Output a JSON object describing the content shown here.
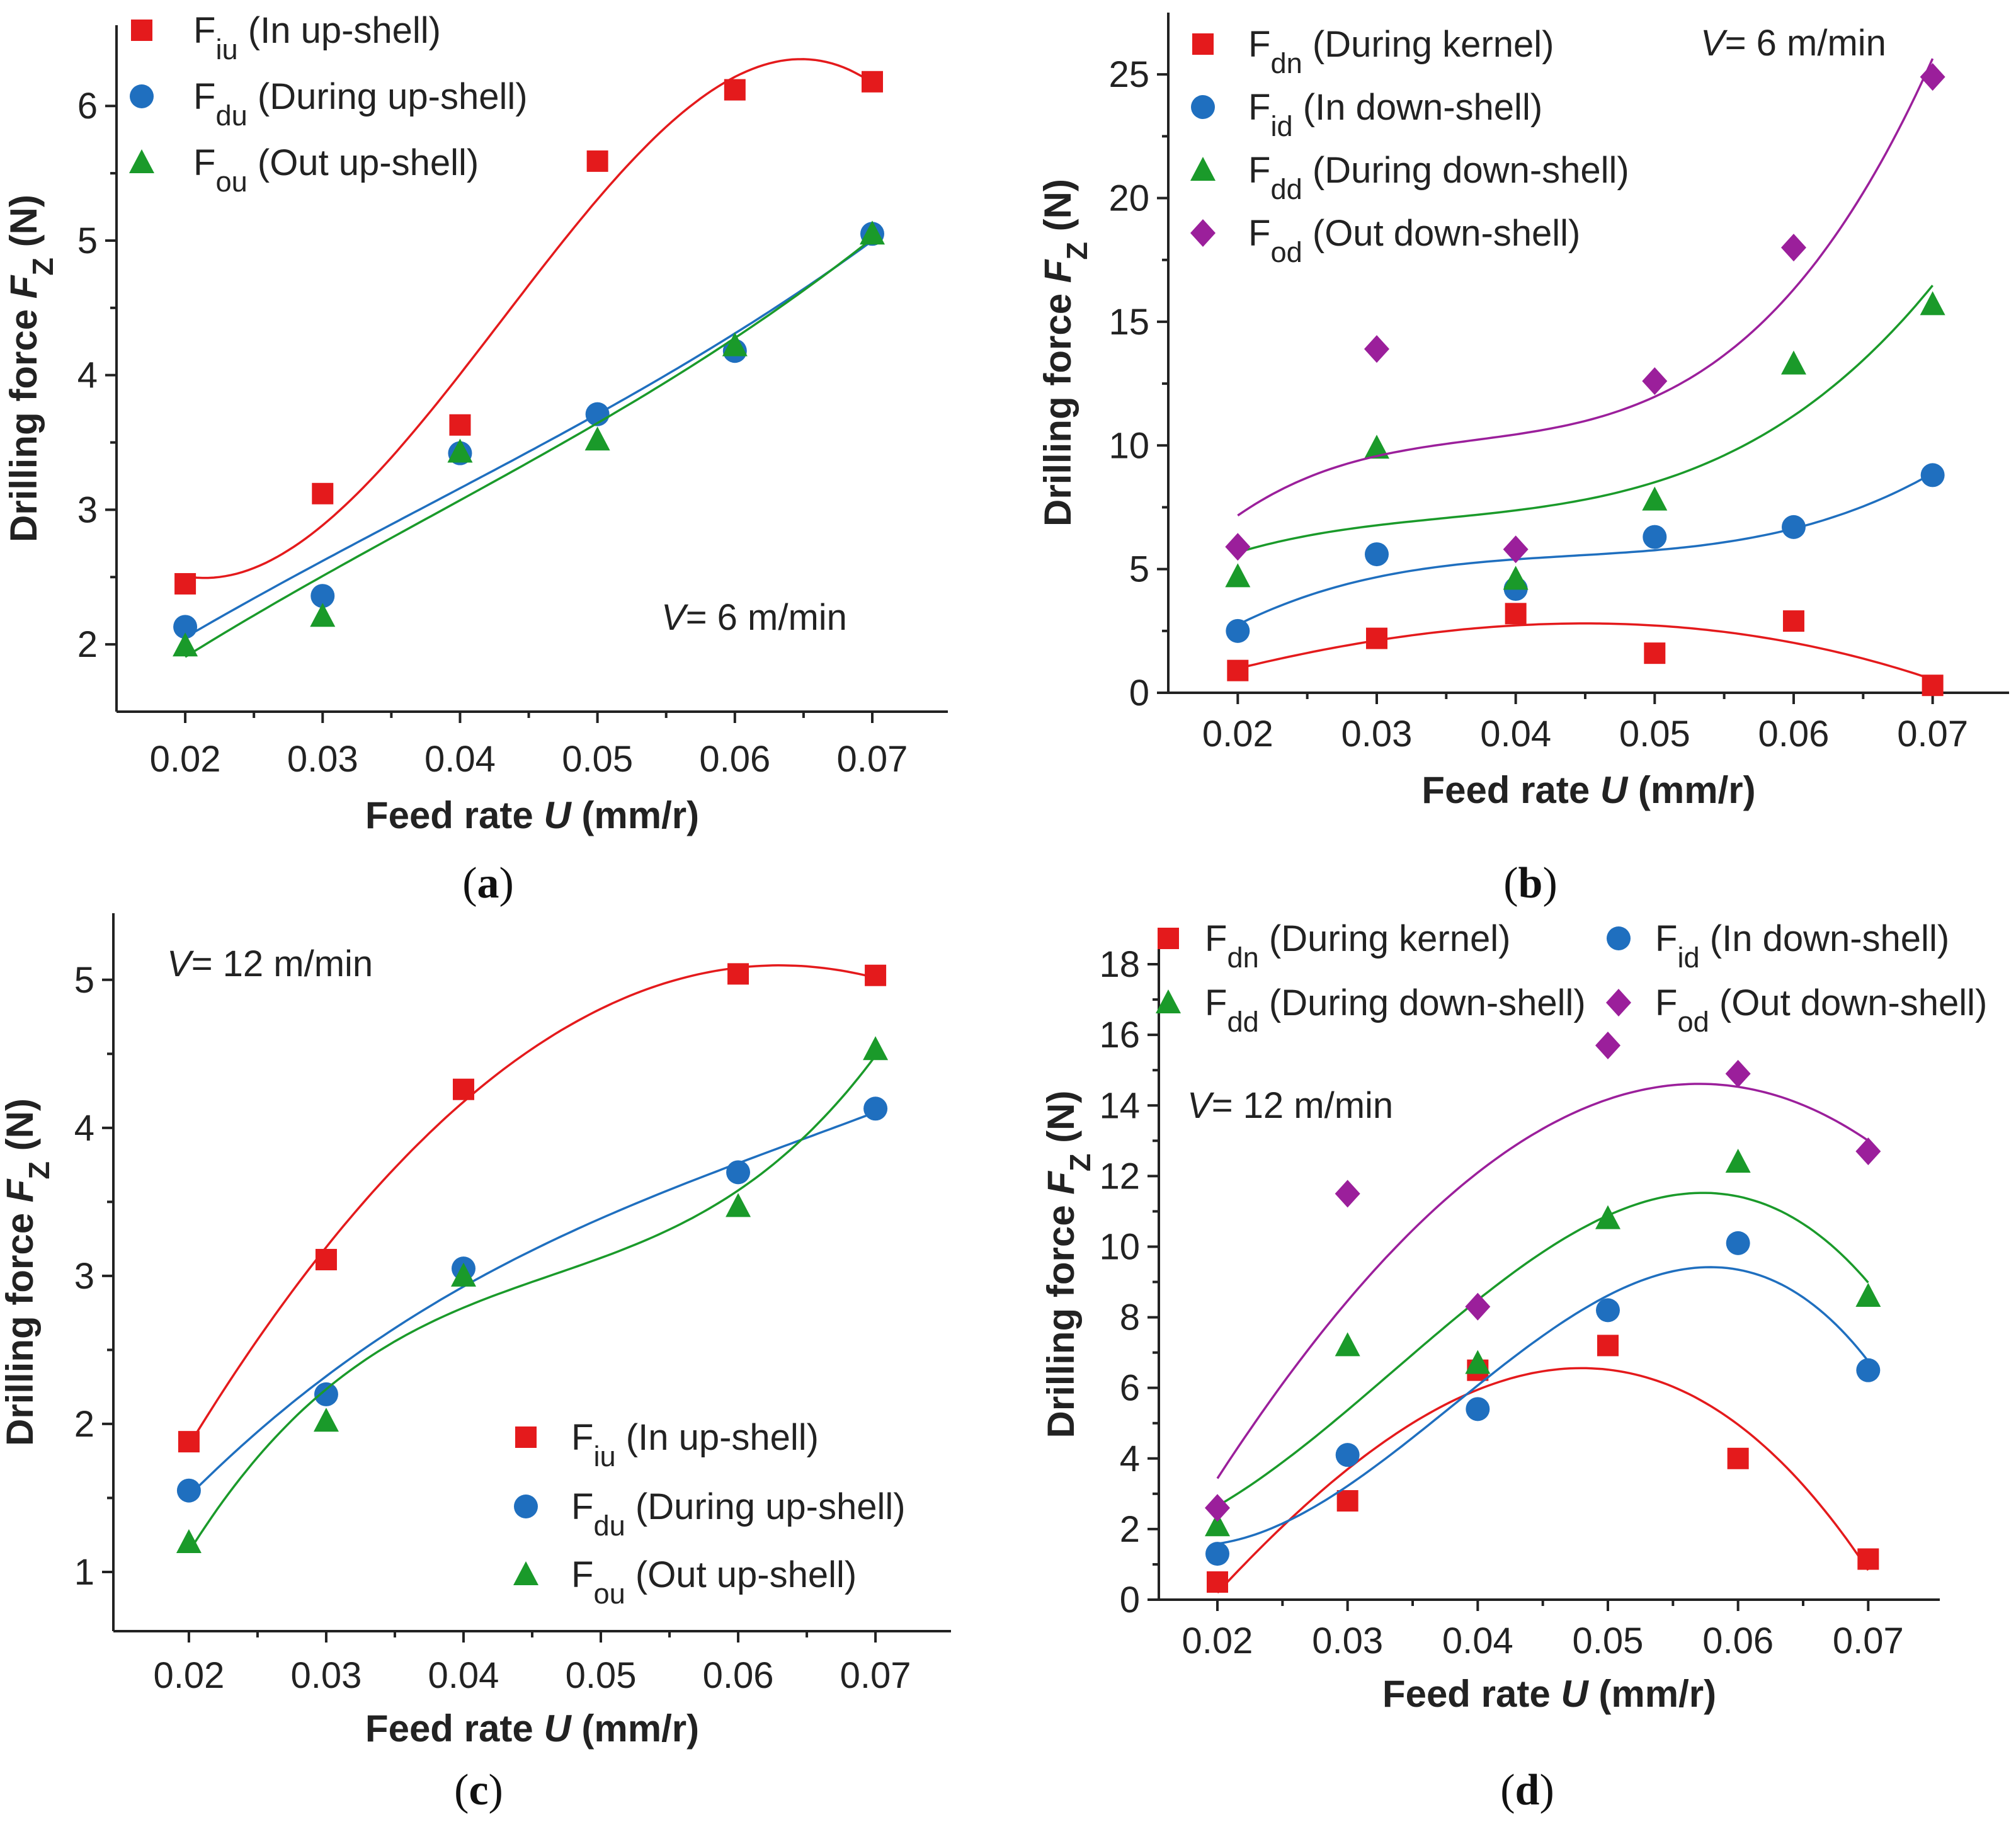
{
  "chart_data": [
    {
      "type": "scatter",
      "panel_label": "(a)",
      "annotation": {
        "text": "V= 6 m/min",
        "italic": "V"
      },
      "xlabel": {
        "text": "Feed rate ",
        "italic": "U",
        "suffix": " (mm/r)"
      },
      "ylabel": {
        "text": "Drilling force ",
        "italic": "F",
        "sub": "Z",
        "suffix": " (N)"
      },
      "xlim": [
        0.015,
        0.0755
      ],
      "ylim": [
        1.5,
        6.6
      ],
      "xticks": [
        0.02,
        0.03,
        0.04,
        0.05,
        0.06,
        0.07
      ],
      "xtick_labels": [
        "0.02",
        "0.03",
        "0.04",
        "0.05",
        "0.06",
        "0.07"
      ],
      "yticks": [
        2,
        3,
        4,
        5,
        6
      ],
      "ytick_labels": [
        "2",
        "3",
        "4",
        "5",
        "6"
      ],
      "legend_position": "top-left",
      "x": [
        0.02,
        0.03,
        0.04,
        0.05,
        0.06,
        0.07
      ],
      "series": [
        {
          "name": "F",
          "sub": "iu",
          "desc": "  (In up-shell)",
          "marker": "square",
          "color": "#e41a1c",
          "values": [
            2.45,
            3.12,
            3.63,
            5.59,
            6.12,
            6.18
          ]
        },
        {
          "name": "F",
          "sub": "du",
          "desc": " (During up-shell)",
          "marker": "circle",
          "color": "#1f6fbf",
          "values": [
            2.13,
            2.36,
            3.42,
            3.71,
            4.18,
            5.05
          ]
        },
        {
          "name": "F",
          "sub": "ou",
          "desc": " (Out up-shell)",
          "marker": "triangle",
          "color": "#1a9a2a",
          "values": [
            1.99,
            2.21,
            3.43,
            3.52,
            4.22,
            5.05
          ]
        }
      ]
    },
    {
      "type": "scatter",
      "panel_label": "(b)",
      "annotation": {
        "text": "V= 6 m/min",
        "italic": "V"
      },
      "xlabel": {
        "text": "Feed rate ",
        "italic": "U",
        "suffix": " (mm/r)"
      },
      "ylabel": {
        "text": "Drilling force ",
        "italic": "F",
        "sub": "Z",
        "suffix": " (N)"
      },
      "xlim": [
        0.015,
        0.0755
      ],
      "ylim": [
        0,
        27.5
      ],
      "xticks": [
        0.02,
        0.03,
        0.04,
        0.05,
        0.06,
        0.07
      ],
      "xtick_labels": [
        "0.02",
        "0.03",
        "0.04",
        "0.05",
        "0.06",
        "0.07"
      ],
      "yticks": [
        0,
        5,
        10,
        15,
        20,
        25
      ],
      "ytick_labels": [
        "0",
        "5",
        "10",
        "15",
        "20",
        "25"
      ],
      "legend_position": "top-left",
      "x": [
        0.02,
        0.03,
        0.04,
        0.05,
        0.06,
        0.07
      ],
      "series": [
        {
          "name": "F",
          "sub": "dn",
          "desc": " (During kernel)",
          "marker": "square",
          "color": "#e41a1c",
          "values": [
            0.9,
            2.2,
            3.2,
            1.6,
            2.9,
            0.3
          ]
        },
        {
          "name": "F",
          "sub": "id",
          "desc": "  (In down-shell)",
          "marker": "circle",
          "color": "#1f6fbf",
          "values": [
            2.5,
            5.6,
            4.2,
            6.3,
            6.7,
            8.8
          ]
        },
        {
          "name": "F",
          "sub": "dd",
          "desc": " (During down-shell)",
          "marker": "triangle",
          "color": "#1a9a2a",
          "values": [
            4.7,
            9.9,
            4.6,
            7.8,
            13.3,
            15.7
          ]
        },
        {
          "name": "F",
          "sub": "od",
          "desc": " (Out down-shell)",
          "marker": "diamond",
          "color": "#9b1f9b",
          "values": [
            5.9,
            13.9,
            5.8,
            12.6,
            18.0,
            24.9
          ]
        }
      ]
    },
    {
      "type": "scatter",
      "panel_label": "(c)",
      "annotation": {
        "text": "V= 12 m/min",
        "italic": "V"
      },
      "xlabel": {
        "text": "Feed rate ",
        "italic": "U",
        "suffix": " (mm/r)"
      },
      "ylabel": {
        "text": "Drilling force ",
        "italic": "F",
        "sub": "Z",
        "suffix": " (N)"
      },
      "xlim": [
        0.0145,
        0.0755
      ],
      "ylim": [
        0.6,
        5.45
      ],
      "xticks": [
        0.02,
        0.03,
        0.04,
        0.05,
        0.06,
        0.07
      ],
      "xtick_labels": [
        "0.02",
        "0.03",
        "0.04",
        "0.05",
        "0.06",
        "0.07"
      ],
      "yticks": [
        1,
        2,
        3,
        4,
        5
      ],
      "ytick_labels": [
        "1",
        "2",
        "3",
        "4",
        "5"
      ],
      "legend_position": "bottom-right",
      "x": [
        0.02,
        0.03,
        0.04,
        0.06,
        0.07
      ],
      "series": [
        {
          "name": "F",
          "sub": "iu",
          "desc": "  (In up-shell)",
          "marker": "square",
          "color": "#e41a1c",
          "values": [
            1.88,
            3.11,
            4.26,
            5.04,
            5.03
          ]
        },
        {
          "name": "F",
          "sub": "du",
          "desc": " (During up-shell)",
          "marker": "circle",
          "color": "#1f6fbf",
          "values": [
            1.55,
            2.2,
            3.05,
            3.7,
            4.13
          ]
        },
        {
          "name": "F",
          "sub": "ou",
          "desc": " (Out up-shell)",
          "marker": "triangle",
          "color": "#1a9a2a",
          "values": [
            1.2,
            2.02,
            3.0,
            3.47,
            4.53
          ]
        }
      ]
    },
    {
      "type": "scatter",
      "panel_label": "(d)",
      "annotation": {
        "text": "V= 12 m/min",
        "italic": "V"
      },
      "xlabel": {
        "text": "Feed rate ",
        "italic": "U",
        "suffix": " (mm/r)"
      },
      "ylabel": {
        "text": "Drilling force ",
        "italic": "F",
        "sub": "Z",
        "suffix": " (N)"
      },
      "xlim": [
        0.0155,
        0.0755
      ],
      "ylim": [
        0,
        19
      ],
      "xticks": [
        0.02,
        0.03,
        0.04,
        0.05,
        0.06,
        0.07
      ],
      "xtick_labels": [
        "0.02",
        "0.03",
        "0.04",
        "0.05",
        "0.06",
        "0.07"
      ],
      "yticks": [
        0,
        2,
        4,
        6,
        8,
        10,
        12,
        14,
        16,
        18
      ],
      "ytick_labels": [
        "0",
        "2",
        "4",
        "6",
        "8",
        "10",
        "12",
        "14",
        "16",
        "18"
      ],
      "legend_position": "top",
      "x": [
        0.02,
        0.03,
        0.04,
        0.05,
        0.06,
        0.07
      ],
      "series": [
        {
          "name": "F",
          "sub": "dn",
          "desc": " (During kernel)",
          "marker": "square",
          "color": "#e41a1c",
          "values": [
            0.5,
            2.8,
            6.5,
            7.2,
            4.0,
            1.15
          ]
        },
        {
          "name": "F",
          "sub": "id",
          "desc": " (In down-shell)",
          "marker": "circle",
          "color": "#1f6fbf",
          "values": [
            1.3,
            4.1,
            5.4,
            8.2,
            10.1,
            6.5
          ]
        },
        {
          "name": "F",
          "sub": "dd",
          "desc": " (During down-shell)",
          "marker": "triangle",
          "color": "#1a9a2a",
          "values": [
            2.1,
            7.2,
            6.7,
            10.8,
            12.4,
            8.6
          ]
        },
        {
          "name": "F",
          "sub": "od",
          "desc": " (Out down-shell)",
          "marker": "diamond",
          "color": "#9b1f9b",
          "values": [
            2.6,
            11.5,
            8.3,
            15.7,
            14.9,
            12.7
          ]
        }
      ]
    }
  ]
}
